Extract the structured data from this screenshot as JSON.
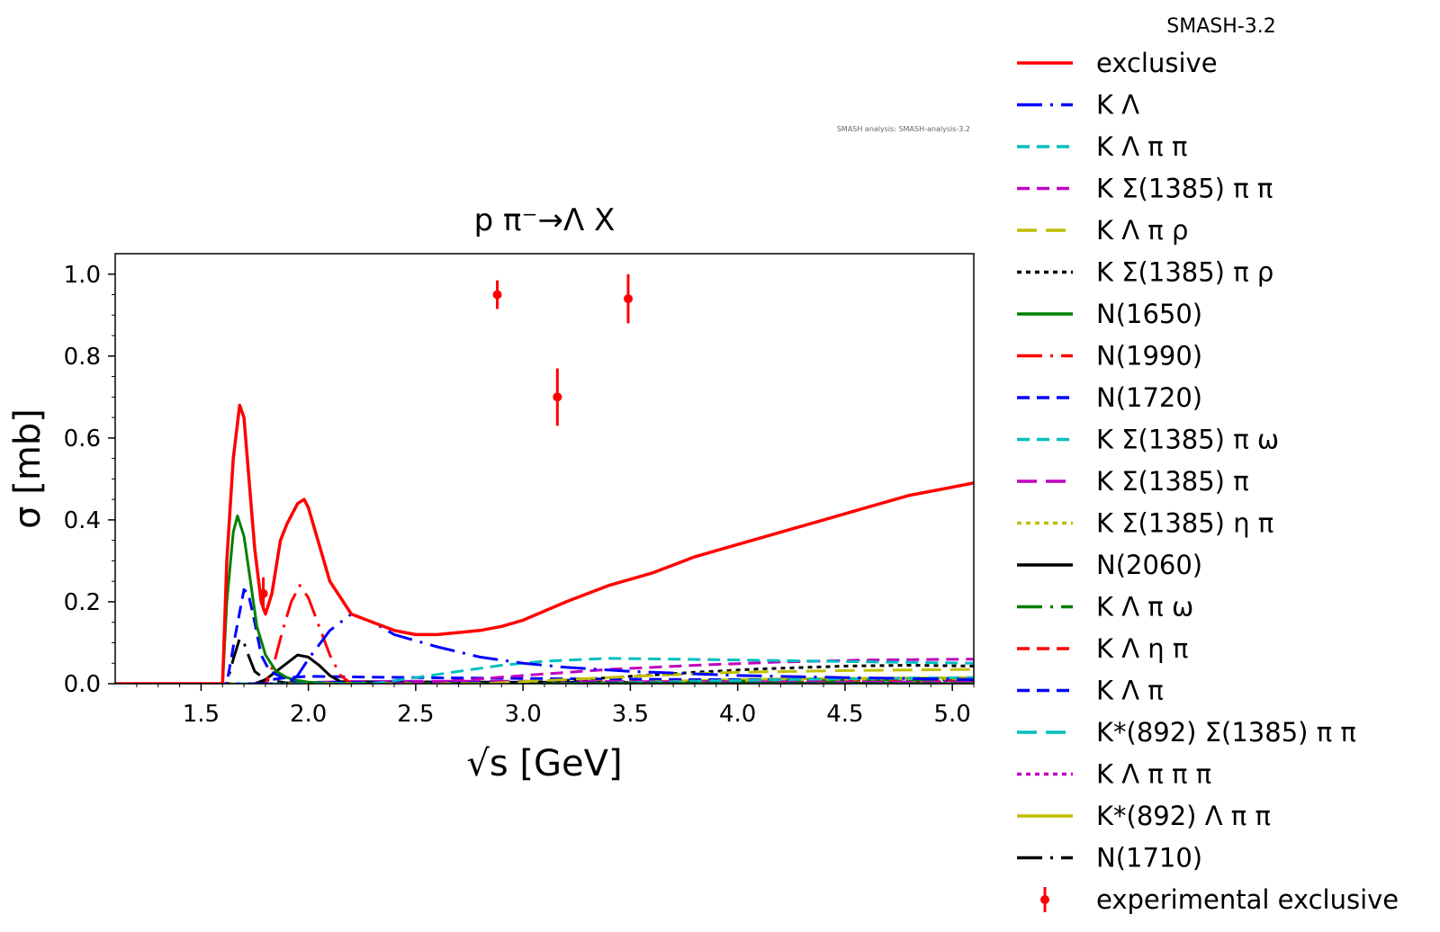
{
  "version_label": "SMASH-3.2",
  "watermark": "SMASH analysis: SMASH-analysis-3.2",
  "chart_data": {
    "type": "line",
    "title": "p π⁻→Λ X",
    "xlabel": "√s [GeV]",
    "ylabel": "σ [mb]",
    "xlim": [
      1.1,
      5.1
    ],
    "ylim": [
      0.0,
      1.05
    ],
    "xticks": [
      "1.5",
      "2.0",
      "2.5",
      "3.0",
      "3.5",
      "4.0",
      "4.5",
      "5.0"
    ],
    "yticks": [
      "0.0",
      "0.2",
      "0.4",
      "0.6",
      "0.8",
      "1.0"
    ],
    "grid": false,
    "legend_position": "right",
    "series": [
      {
        "name": "exclusive",
        "color": "#ff0000",
        "dash": "solid",
        "x": [
          1.1,
          1.6,
          1.62,
          1.65,
          1.68,
          1.7,
          1.72,
          1.75,
          1.78,
          1.8,
          1.83,
          1.87,
          1.9,
          1.95,
          1.98,
          2.0,
          2.05,
          2.1,
          2.2,
          2.3,
          2.4,
          2.5,
          2.6,
          2.7,
          2.8,
          2.9,
          3.0,
          3.2,
          3.4,
          3.6,
          3.8,
          4.0,
          4.2,
          4.4,
          4.6,
          4.8,
          5.0,
          5.1
        ],
        "y": [
          0.0,
          0.0,
          0.3,
          0.55,
          0.68,
          0.65,
          0.52,
          0.33,
          0.2,
          0.17,
          0.22,
          0.35,
          0.39,
          0.44,
          0.45,
          0.43,
          0.34,
          0.25,
          0.17,
          0.15,
          0.13,
          0.12,
          0.12,
          0.125,
          0.13,
          0.14,
          0.155,
          0.2,
          0.24,
          0.27,
          0.31,
          0.34,
          0.37,
          0.4,
          0.43,
          0.46,
          0.48,
          0.49
        ]
      },
      {
        "name": "K Λ",
        "color": "#0000ff",
        "dash": "long-dot",
        "x": [
          1.1,
          1.9,
          1.95,
          2.0,
          2.1,
          2.2,
          2.3,
          2.4,
          2.6,
          2.8,
          3.0,
          3.2,
          3.5,
          4.0,
          4.5,
          5.1
        ],
        "y": [
          0.0,
          0.0,
          0.02,
          0.06,
          0.13,
          0.17,
          0.15,
          0.12,
          0.09,
          0.065,
          0.05,
          0.04,
          0.03,
          0.02,
          0.015,
          0.01
        ]
      },
      {
        "name": "K Λ π π",
        "color": "#00bfbf",
        "dash": "dash",
        "x": [
          1.1,
          2.3,
          2.5,
          2.7,
          2.9,
          3.1,
          3.4,
          3.7,
          4.0,
          4.4,
          4.8,
          5.1
        ],
        "y": [
          0.0,
          0.0,
          0.015,
          0.03,
          0.045,
          0.055,
          0.062,
          0.06,
          0.058,
          0.055,
          0.052,
          0.05
        ]
      },
      {
        "name": "K Σ(1385) π π",
        "color": "#bf00bf",
        "dash": "dash",
        "x": [
          1.1,
          2.4,
          2.7,
          3.0,
          3.4,
          3.8,
          4.2,
          4.6,
          5.1
        ],
        "y": [
          0.0,
          0.0,
          0.008,
          0.02,
          0.035,
          0.045,
          0.053,
          0.058,
          0.06
        ]
      },
      {
        "name": "K Λ π ρ",
        "color": "#bfbf00",
        "dash": "long-dash",
        "x": [
          1.1,
          2.8,
          3.2,
          3.6,
          4.0,
          4.5,
          5.1
        ],
        "y": [
          0.0,
          0.0,
          0.01,
          0.02,
          0.028,
          0.032,
          0.035
        ]
      },
      {
        "name": "K Σ(1385) π ρ",
        "color": "#000000",
        "dash": "dot",
        "x": [
          1.1,
          2.9,
          3.2,
          3.5,
          3.8,
          4.1,
          4.5,
          4.8,
          5.1
        ],
        "y": [
          0.0,
          0.0,
          0.008,
          0.018,
          0.028,
          0.036,
          0.043,
          0.045,
          0.043
        ]
      },
      {
        "name": "N(1650)",
        "color": "#008000",
        "dash": "solid",
        "x": [
          1.1,
          1.6,
          1.62,
          1.65,
          1.67,
          1.7,
          1.73,
          1.76,
          1.8,
          1.85,
          1.9,
          1.95,
          2.0,
          2.1,
          5.1
        ],
        "y": [
          0.0,
          0.0,
          0.2,
          0.37,
          0.41,
          0.36,
          0.25,
          0.14,
          0.07,
          0.03,
          0.015,
          0.008,
          0.004,
          0.001,
          0.0
        ]
      },
      {
        "name": "N(1990)",
        "color": "#ff0000",
        "dash": "long-dot",
        "x": [
          1.1,
          1.8,
          1.84,
          1.88,
          1.92,
          1.96,
          2.0,
          2.05,
          2.1,
          2.15,
          2.2,
          5.1
        ],
        "y": [
          0.0,
          0.0,
          0.05,
          0.13,
          0.2,
          0.24,
          0.21,
          0.14,
          0.07,
          0.02,
          0.0,
          0.0
        ]
      },
      {
        "name": "N(1720)",
        "color": "#0000ff",
        "dash": "dash",
        "x": [
          1.1,
          1.62,
          1.66,
          1.7,
          1.72,
          1.75,
          1.78,
          1.82,
          1.9,
          2.0,
          5.1
        ],
        "y": [
          0.0,
          0.0,
          0.12,
          0.23,
          0.22,
          0.15,
          0.07,
          0.03,
          0.01,
          0.003,
          0.0
        ]
      },
      {
        "name": "K Σ(1385) π ω",
        "color": "#00bfbf",
        "dash": "dash",
        "x": [
          1.1,
          3.2,
          3.6,
          4.0,
          4.5,
          5.1
        ],
        "y": [
          0.0,
          0.0,
          0.004,
          0.008,
          0.012,
          0.015
        ]
      },
      {
        "name": "K Σ(1385) π",
        "color": "#bf00bf",
        "dash": "long-dash",
        "x": [
          1.1,
          1.95,
          2.0,
          2.2,
          2.5,
          3.0,
          3.5,
          4.0,
          4.5,
          5.1
        ],
        "y": [
          0.0,
          0.0,
          0.003,
          0.005,
          0.006,
          0.006,
          0.005,
          0.005,
          0.004,
          0.004
        ]
      },
      {
        "name": "K Σ(1385) η π",
        "color": "#bfbf00",
        "dash": "dot",
        "x": [
          1.1,
          3.0,
          3.5,
          4.0,
          4.5,
          5.1
        ],
        "y": [
          0.0,
          0.0,
          0.004,
          0.008,
          0.011,
          0.013
        ]
      },
      {
        "name": "N(2060)",
        "color": "#000000",
        "dash": "solid",
        "x": [
          1.1,
          1.75,
          1.8,
          1.85,
          1.9,
          1.95,
          2.0,
          2.05,
          2.1,
          2.15,
          5.1
        ],
        "y": [
          0.0,
          0.0,
          0.01,
          0.03,
          0.05,
          0.07,
          0.065,
          0.045,
          0.02,
          0.005,
          0.0
        ]
      },
      {
        "name": "K Λ π ω",
        "color": "#008000",
        "dash": "long-dot",
        "x": [
          1.1,
          2.8,
          3.4,
          4.0,
          4.5,
          5.1
        ],
        "y": [
          0.0,
          0.0,
          0.003,
          0.006,
          0.008,
          0.01
        ]
      },
      {
        "name": "K Λ η π",
        "color": "#ff0000",
        "dash": "dash",
        "x": [
          1.1,
          2.4,
          3.0,
          3.5,
          4.0,
          4.5,
          5.1
        ],
        "y": [
          0.0,
          0.0,
          0.003,
          0.005,
          0.007,
          0.008,
          0.009
        ]
      },
      {
        "name": "K Λ π",
        "color": "#0000ff",
        "dash": "dash",
        "x": [
          1.1,
          1.75,
          1.8,
          1.9,
          2.0,
          2.3,
          2.7,
          3.2,
          3.8,
          4.5,
          5.1
        ],
        "y": [
          0.0,
          0.0,
          0.008,
          0.015,
          0.018,
          0.016,
          0.014,
          0.012,
          0.01,
          0.009,
          0.008
        ]
      },
      {
        "name": "K*(892) Σ(1385) π π",
        "color": "#00bfbf",
        "dash": "long-dash",
        "x": [
          1.1,
          3.6,
          4.0,
          4.5,
          5.1
        ],
        "y": [
          0.0,
          0.0,
          0.002,
          0.004,
          0.005
        ]
      },
      {
        "name": "K Λ π π π",
        "color": "#bf00bf",
        "dash": "dot",
        "x": [
          1.1,
          3.0,
          3.5,
          4.0,
          4.5,
          5.1
        ],
        "y": [
          0.0,
          0.0,
          0.002,
          0.004,
          0.006,
          0.007
        ]
      },
      {
        "name": "K*(892) Λ π π",
        "color": "#bfbf00",
        "dash": "solid",
        "x": [
          1.1,
          3.2,
          3.6,
          4.0,
          4.5,
          5.1
        ],
        "y": [
          0.0,
          0.0,
          0.005,
          0.01,
          0.013,
          0.015
        ]
      },
      {
        "name": "N(1710)",
        "color": "#000000",
        "dash": "long-dot",
        "x": [
          1.1,
          1.62,
          1.65,
          1.68,
          1.7,
          1.72,
          1.75,
          1.8,
          1.9,
          5.1
        ],
        "y": [
          0.0,
          0.0,
          0.06,
          0.11,
          0.1,
          0.07,
          0.03,
          0.01,
          0.002,
          0.0
        ]
      }
    ],
    "experimental": {
      "name": "experimental exclusive",
      "color": "#ff0000",
      "points": [
        {
          "x": 1.79,
          "y": 0.22,
          "err": 0.04
        },
        {
          "x": 2.88,
          "y": 0.95,
          "err": 0.035
        },
        {
          "x": 3.16,
          "y": 0.7,
          "err": 0.07
        },
        {
          "x": 3.49,
          "y": 0.94,
          "err": 0.06
        }
      ]
    }
  }
}
